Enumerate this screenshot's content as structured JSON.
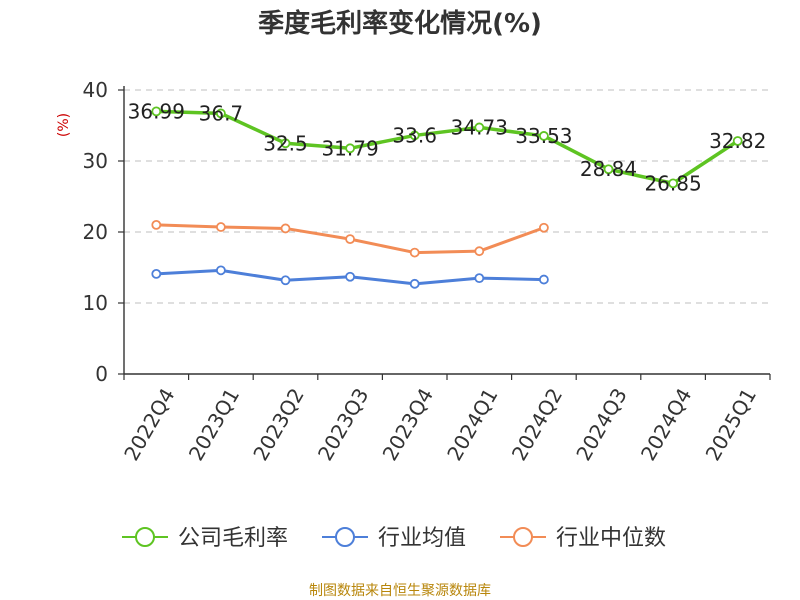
{
  "chart_data": {
    "type": "line",
    "title": "季度毛利率变化情况(%)",
    "ylabel": "(%)",
    "xlabel": "",
    "ylim": [
      0,
      40
    ],
    "yticks": [
      0,
      10,
      20,
      30,
      40
    ],
    "grid": true,
    "legend_position": "bottom",
    "categories": [
      "2022Q4",
      "2023Q1",
      "2023Q2",
      "2023Q3",
      "2023Q4",
      "2024Q1",
      "2024Q2",
      "2024Q3",
      "2024Q4",
      "2025Q1"
    ],
    "series": [
      {
        "name": "公司毛利率",
        "color": "#5ec422",
        "values": [
          36.99,
          36.7,
          32.5,
          31.79,
          33.6,
          34.73,
          33.53,
          28.84,
          26.85,
          32.82
        ],
        "labels": [
          "36.99",
          "36.7",
          "32.5",
          "31.79",
          "33.6",
          "34.73",
          "33.53",
          "28.84",
          "26.85",
          "32.82"
        ]
      },
      {
        "name": "行业均值",
        "color": "#4d7fd9",
        "values": [
          14.1,
          14.6,
          13.2,
          13.7,
          12.7,
          13.5,
          13.3,
          null,
          null,
          null
        ]
      },
      {
        "name": "行业中位数",
        "color": "#f28c56",
        "values": [
          21.0,
          20.7,
          20.5,
          19.0,
          17.1,
          17.3,
          20.6,
          null,
          null,
          null
        ]
      }
    ],
    "source": "制图数据来自恒生聚源数据库"
  }
}
